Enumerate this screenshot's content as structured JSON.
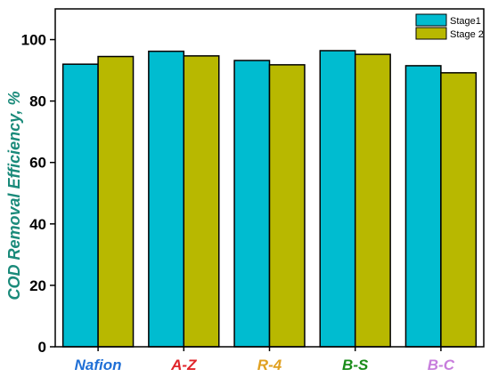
{
  "chart_data": {
    "type": "bar",
    "categories": [
      "Nafion",
      "A-Z",
      "R-4",
      "B-S",
      "B-C"
    ],
    "category_colors": [
      "#1f6fd6",
      "#e0242a",
      "#e0a020",
      "#1a8c1a",
      "#c77ddc"
    ],
    "series": [
      {
        "name": "Stage1",
        "values": [
          92.0,
          96.2,
          93.2,
          96.4,
          91.5
        ],
        "color": "#00bcd0"
      },
      {
        "name": "Stage 2",
        "values": [
          94.5,
          94.7,
          91.8,
          95.2,
          89.2
        ],
        "color": "#b8b800"
      }
    ],
    "ylabel": "COD Removal Efficiency, %",
    "ylabel_color": "#1a8a7a",
    "ylim": [
      0,
      110
    ],
    "yticks": [
      0,
      20,
      40,
      60,
      80,
      100
    ],
    "legend_position": "top-right",
    "grid": false
  }
}
